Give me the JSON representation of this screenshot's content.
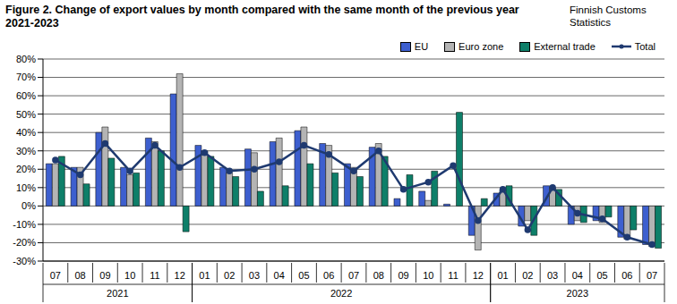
{
  "chart_data": {
    "type": "bar",
    "title": "Figure 2. Change of export values by month compared with the same month of the previous year 2021-2023",
    "source": "Finnish Customs Statistics",
    "categories": [
      "07",
      "08",
      "09",
      "10",
      "11",
      "12",
      "01",
      "02",
      "03",
      "04",
      "05",
      "06",
      "07",
      "08",
      "09",
      "10",
      "11",
      "12",
      "01",
      "02",
      "03",
      "04",
      "05",
      "06",
      "07"
    ],
    "years": [
      "2021",
      "2021",
      "2021",
      "2021",
      "2021",
      "2021",
      "2022",
      "2022",
      "2022",
      "2022",
      "2022",
      "2022",
      "2022",
      "2022",
      "2022",
      "2022",
      "2022",
      "2022",
      "2023",
      "2023",
      "2023",
      "2023",
      "2023",
      "2023",
      "2023"
    ],
    "series": [
      {
        "name": "EU",
        "type": "bar",
        "color": "#3d5fcf",
        "values": [
          23,
          21,
          40,
          21,
          37,
          61,
          33,
          21,
          31,
          35,
          41,
          34,
          23,
          32,
          4,
          8,
          1,
          -16,
          7,
          -11,
          11,
          -10,
          -8,
          -17,
          -21
        ]
      },
      {
        "name": "Euro zone",
        "type": "bar",
        "color": "#b4b4b4",
        "values": [
          23,
          21,
          43,
          17,
          35,
          72,
          30,
          18,
          29,
          37,
          43,
          33,
          21,
          34,
          0,
          3,
          0,
          -24,
          9,
          -8,
          10,
          -8,
          -9,
          -18,
          -22
        ]
      },
      {
        "name": "External trade",
        "type": "bar",
        "color": "#0e7f69",
        "values": [
          27,
          12,
          26,
          18,
          30,
          -14,
          27,
          16,
          8,
          11,
          23,
          18,
          16,
          27,
          17,
          19,
          51,
          4,
          11,
          -16,
          9,
          -9,
          -6,
          -13,
          -23
        ]
      },
      {
        "name": "Total",
        "type": "line",
        "color": "#1f3a70",
        "marker": "circle",
        "values": [
          25,
          17,
          34,
          19,
          33,
          21,
          29,
          19,
          20,
          24,
          33,
          28,
          19,
          30,
          9,
          13,
          22,
          -8,
          9,
          -13,
          10,
          -4,
          -7,
          -17,
          -21
        ]
      }
    ],
    "ylim": [
      -30,
      80
    ],
    "yticks": [
      {
        "value": -30,
        "label": "-30%"
      },
      {
        "value": -20,
        "label": "-20%"
      },
      {
        "value": -10,
        "label": "-10%"
      },
      {
        "value": 0,
        "label": "0%"
      },
      {
        "value": 10,
        "label": "10%"
      },
      {
        "value": 20,
        "label": "20%"
      },
      {
        "value": 30,
        "label": "30%"
      },
      {
        "value": 40,
        "label": "40%"
      },
      {
        "value": 50,
        "label": "50%"
      },
      {
        "value": 60,
        "label": "60%"
      },
      {
        "value": 70,
        "label": "70%"
      },
      {
        "value": 80,
        "label": "80%"
      }
    ],
    "grid": true,
    "legend": "upper right"
  }
}
